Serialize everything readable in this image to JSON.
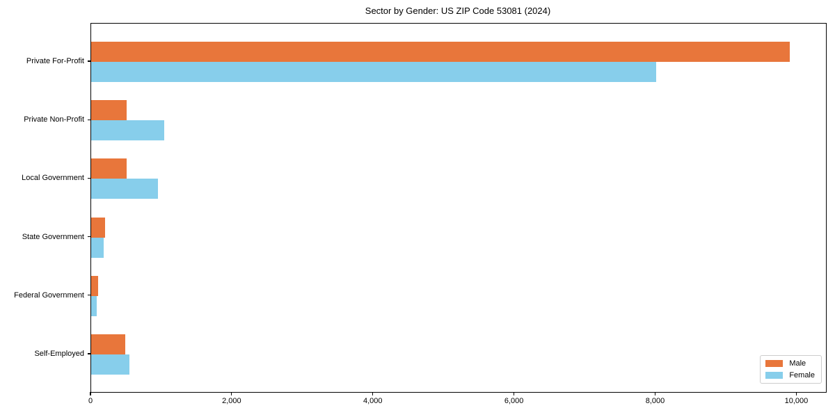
{
  "chart_data": {
    "type": "bar",
    "orientation": "horizontal",
    "title": "Sector by Gender: US ZIP Code 53081 (2024)",
    "categories": [
      "Private For-Profit",
      "Private Non-Profit",
      "Local Government",
      "State Government",
      "Federal Government",
      "Self-Employed"
    ],
    "series": [
      {
        "name": "Male",
        "color": "#e8763b",
        "values": [
          9900,
          505,
          505,
          200,
          95,
          480
        ]
      },
      {
        "name": "Female",
        "color": "#87ceeb",
        "values": [
          8000,
          1040,
          950,
          175,
          80,
          540
        ]
      }
    ],
    "xlabel": "",
    "ylabel": "",
    "xlim": [
      0,
      10410
    ],
    "x_ticks": [
      0,
      2000,
      4000,
      6000,
      8000,
      10000
    ],
    "x_tick_labels": [
      "0",
      "2,000",
      "4,000",
      "6,000",
      "8,000",
      "10,000"
    ],
    "grid": false,
    "legend": {
      "position": "lower right"
    },
    "colors": {
      "axis": "#000000",
      "text": "#000000",
      "legend_border": "#cccccc",
      "background": "#ffffff"
    }
  }
}
